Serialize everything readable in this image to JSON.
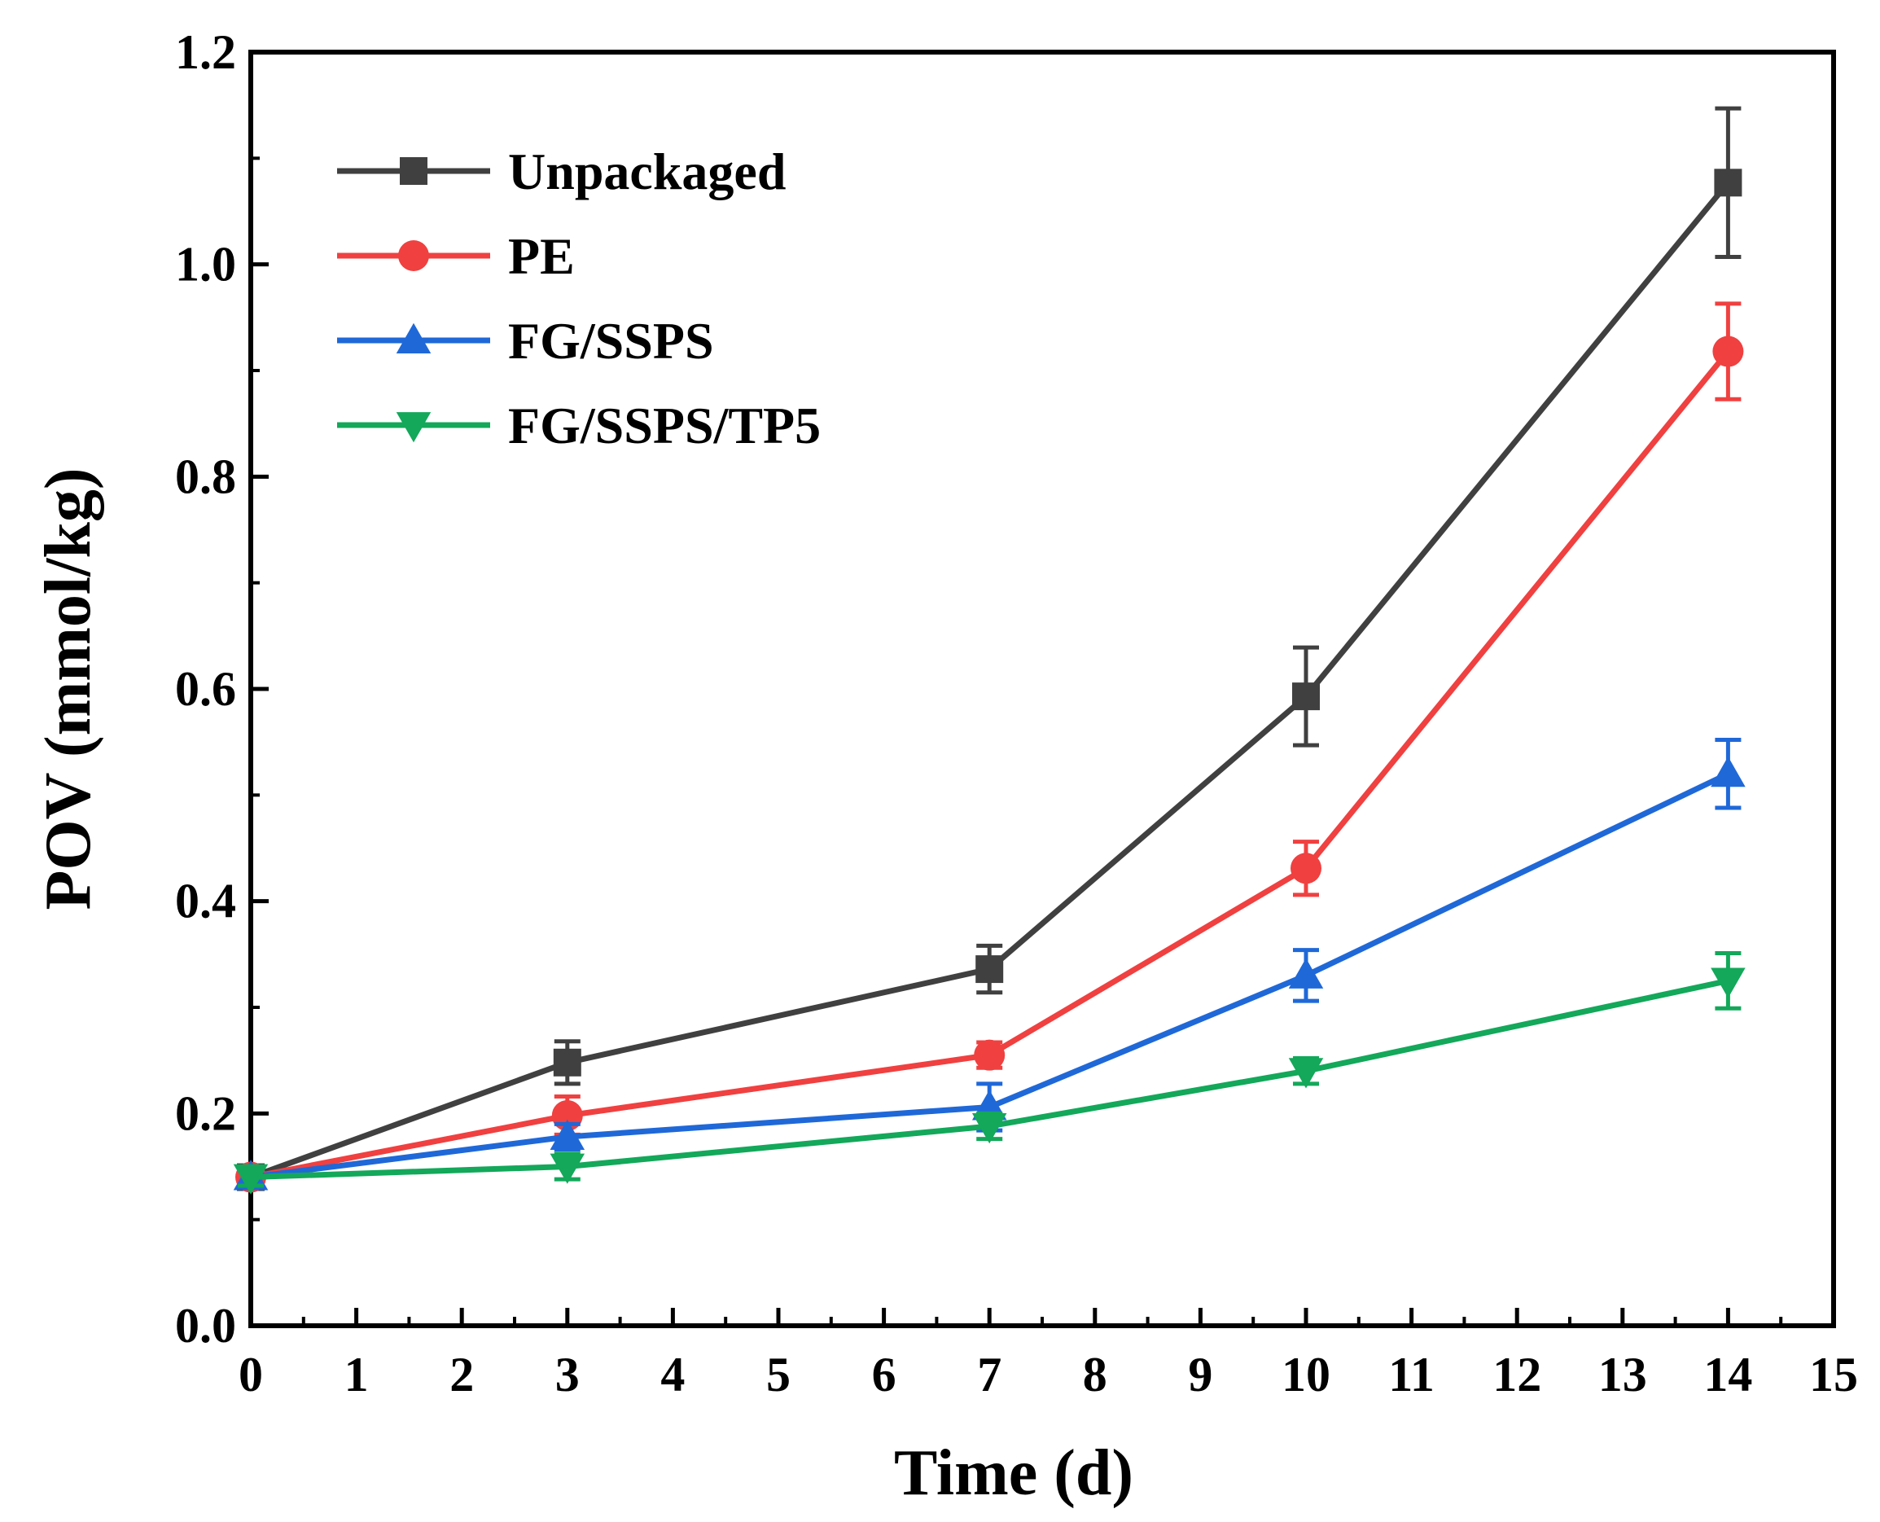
{
  "chart_data": {
    "type": "line",
    "title": "",
    "xlabel": "Time (d)",
    "ylabel": "POV (mmol/kg)",
    "xlim": [
      0,
      15
    ],
    "ylim": [
      0.0,
      1.2
    ],
    "xticks": [
      0,
      1,
      2,
      3,
      4,
      5,
      6,
      7,
      8,
      9,
      10,
      11,
      12,
      13,
      14,
      15
    ],
    "xtick_labels": [
      "0",
      "1",
      "2",
      "3",
      "4",
      "5",
      "6",
      "7",
      "8",
      "9",
      "10",
      "11",
      "12",
      "13",
      "14",
      "15"
    ],
    "yticks": [
      0.0,
      0.2,
      0.4,
      0.6,
      0.8,
      1.0,
      1.2
    ],
    "ytick_labels": [
      "0.0",
      "0.2",
      "0.4",
      "0.6",
      "0.8",
      "1.0",
      "1.2"
    ],
    "grid": false,
    "legend_position": "top-left",
    "x": [
      0,
      3,
      7,
      10,
      14
    ],
    "series": [
      {
        "name": "Unpackaged",
        "color": "#404040",
        "marker": "square",
        "values": [
          0.14,
          0.248,
          0.336,
          0.593,
          1.077
        ],
        "errors": [
          0.008,
          0.02,
          0.022,
          0.046,
          0.07
        ]
      },
      {
        "name": "PE",
        "color": "#f04040",
        "marker": "circle",
        "values": [
          0.14,
          0.198,
          0.255,
          0.431,
          0.918
        ],
        "errors": [
          0.008,
          0.018,
          0.012,
          0.025,
          0.045
        ]
      },
      {
        "name": "FG/SSPS",
        "color": "#1f68d8",
        "marker": "triangle-up",
        "values": [
          0.14,
          0.178,
          0.206,
          0.33,
          0.52
        ],
        "errors": [
          0.008,
          0.012,
          0.022,
          0.024,
          0.032
        ]
      },
      {
        "name": "FG/SSPS/TP5",
        "color": "#13a85a",
        "marker": "triangle-down",
        "values": [
          0.14,
          0.15,
          0.188,
          0.24,
          0.325
        ],
        "errors": [
          0.008,
          0.012,
          0.012,
          0.012,
          0.026
        ]
      }
    ]
  }
}
